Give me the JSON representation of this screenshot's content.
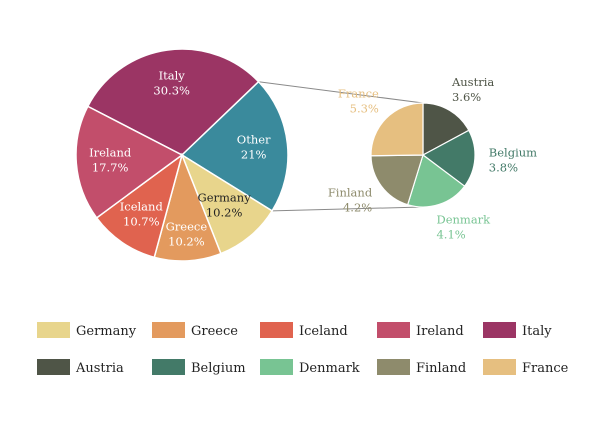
{
  "chart_data": {
    "type": "pie",
    "title": "",
    "main_pie": [
      {
        "name": "Italy",
        "value": 30.3,
        "label": "30.3%",
        "color": "#9b3564"
      },
      {
        "name": "Other",
        "value": 21.0,
        "label": "21%",
        "color": "#3a8a9c"
      },
      {
        "name": "Germany",
        "value": 10.2,
        "label": "10.2%",
        "color": "#e8d58c"
      },
      {
        "name": "Greece",
        "value": 10.2,
        "label": "10.2%",
        "color": "#e39a5e"
      },
      {
        "name": "Iceland",
        "value": 10.7,
        "label": "10.7%",
        "color": "#e0634f"
      },
      {
        "name": "Ireland",
        "value": 17.7,
        "label": "17.7%",
        "color": "#c24e6b"
      }
    ],
    "exploded_slice": "Other",
    "sub_pie": [
      {
        "name": "Austria",
        "value": 3.6,
        "label": "3.6%",
        "color": "#4f5547"
      },
      {
        "name": "Belgium",
        "value": 3.8,
        "label": "3.8%",
        "color": "#437a68"
      },
      {
        "name": "Denmark",
        "value": 4.1,
        "label": "4.1%",
        "color": "#78c493"
      },
      {
        "name": "Finland",
        "value": 4.2,
        "label": "4.2%",
        "color": "#8e8b6c"
      },
      {
        "name": "France",
        "value": 5.3,
        "label": "5.3%",
        "color": "#e6bf80"
      }
    ],
    "legend": {
      "placement": "bottom",
      "entries": [
        {
          "name": "Germany",
          "color": "#e8d58c"
        },
        {
          "name": "Greece",
          "color": "#e39a5e"
        },
        {
          "name": "Iceland",
          "color": "#e0634f"
        },
        {
          "name": "Ireland",
          "color": "#c24e6b"
        },
        {
          "name": "Italy",
          "color": "#9b3564"
        },
        {
          "name": "Austria",
          "color": "#4f5547"
        },
        {
          "name": "Belgium",
          "color": "#437a68"
        },
        {
          "name": "Denmark",
          "color": "#78c493"
        },
        {
          "name": "Finland",
          "color": "#8e8b6c"
        },
        {
          "name": "France",
          "color": "#e6bf80"
        }
      ]
    }
  }
}
